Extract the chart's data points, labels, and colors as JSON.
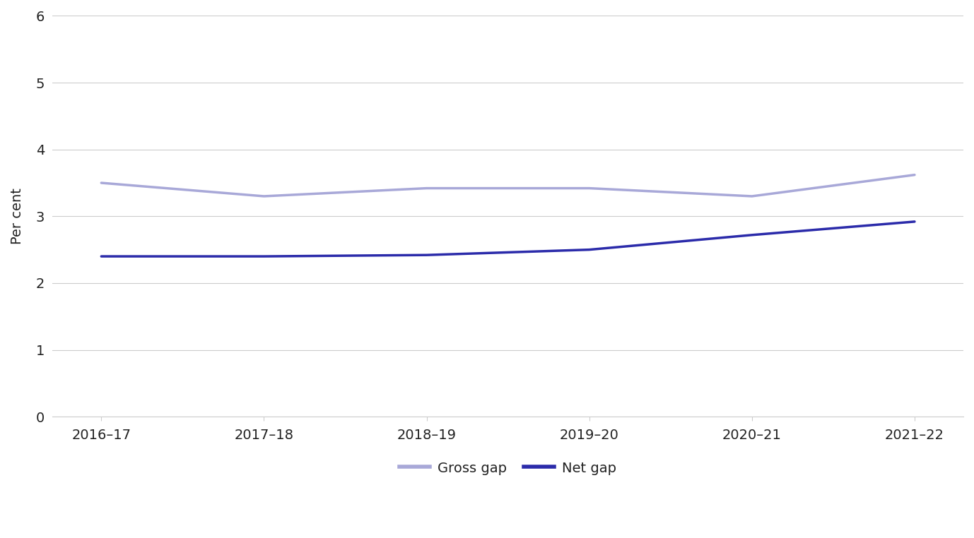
{
  "x_labels": [
    "2016–17",
    "2017–18",
    "2018–19",
    "2019–20",
    "2020–21",
    "2021–22"
  ],
  "gross_gap": [
    3.5,
    3.3,
    3.42,
    3.42,
    3.3,
    3.62
  ],
  "net_gap": [
    2.4,
    2.4,
    2.42,
    2.5,
    2.72,
    2.92
  ],
  "gross_gap_color": "#a8a8d8",
  "net_gap_color": "#2b2baa",
  "ylabel": "Per cent",
  "ylim": [
    0,
    6
  ],
  "yticks": [
    0,
    1,
    2,
    3,
    4,
    5,
    6
  ],
  "line_width": 2.5,
  "legend_gross": "Gross gap",
  "legend_net": "Net gap",
  "background_color": "#ffffff",
  "grid_color": "#cccccc",
  "font_color": "#222222",
  "font_size_ticks": 14,
  "font_size_ylabel": 14,
  "font_size_legend": 14
}
